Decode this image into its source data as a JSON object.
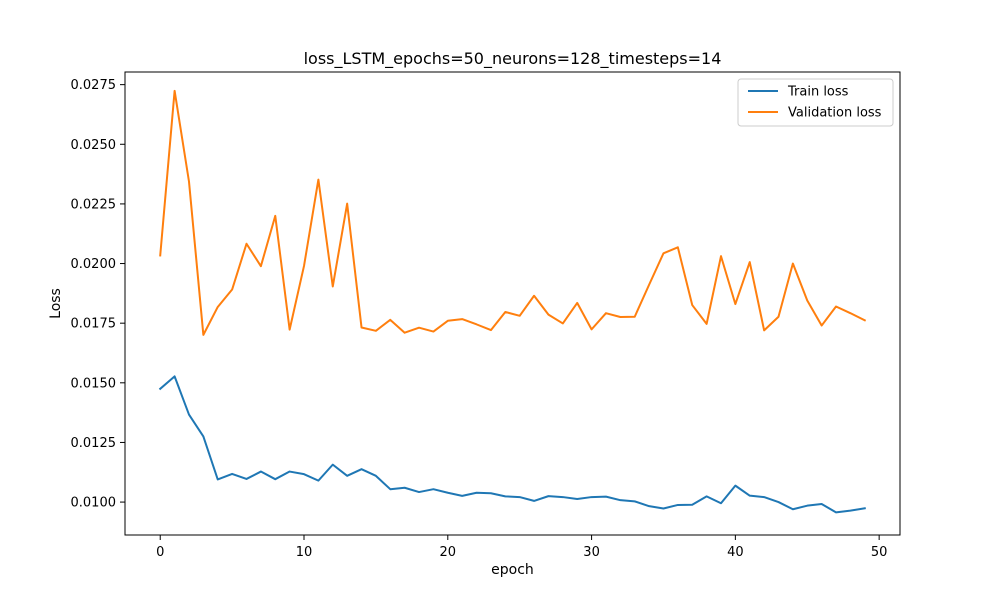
{
  "chart_data": {
    "type": "line",
    "title": "loss_LSTM_epochs=50_neurons=128_timesteps=14",
    "xlabel": "epoch",
    "ylabel": "Loss",
    "xlim": [
      -2.45,
      51.45
    ],
    "ylim": [
      0.00862,
      0.02803
    ],
    "xticks": [
      0,
      10,
      20,
      30,
      40,
      50
    ],
    "xtick_labels": [
      "0",
      "10",
      "20",
      "30",
      "40",
      "50"
    ],
    "yticks": [
      0.01,
      0.0125,
      0.015,
      0.0175,
      0.02,
      0.0225,
      0.025,
      0.0275
    ],
    "ytick_labels": [
      "0.0100",
      "0.0125",
      "0.0150",
      "0.0175",
      "0.0200",
      "0.0225",
      "0.0250",
      "0.0275"
    ],
    "grid": false,
    "legend_position": "top-right",
    "x": [
      0,
      1,
      2,
      3,
      4,
      5,
      6,
      7,
      8,
      9,
      10,
      11,
      12,
      13,
      14,
      15,
      16,
      17,
      18,
      19,
      20,
      21,
      22,
      23,
      24,
      25,
      26,
      27,
      28,
      29,
      30,
      31,
      32,
      33,
      34,
      35,
      36,
      37,
      38,
      39,
      40,
      41,
      42,
      43,
      44,
      45,
      46,
      47,
      48,
      49
    ],
    "series": [
      {
        "name": "Train loss",
        "color": "#1f77b4",
        "values": [
          0.01475,
          0.01527,
          0.01367,
          0.01275,
          0.01095,
          0.01118,
          0.01097,
          0.01128,
          0.01096,
          0.01128,
          0.01117,
          0.0109,
          0.01157,
          0.0111,
          0.01138,
          0.0111,
          0.01054,
          0.0106,
          0.01042,
          0.01054,
          0.01039,
          0.01026,
          0.01039,
          0.01037,
          0.01024,
          0.01021,
          0.01005,
          0.01025,
          0.01021,
          0.01013,
          0.01021,
          0.01023,
          0.01008,
          0.01003,
          0.00983,
          0.00973,
          0.00988,
          0.00989,
          0.01024,
          0.00995,
          0.01069,
          0.01027,
          0.01021,
          0.01,
          0.0097,
          0.00985,
          0.00992,
          0.00957,
          0.00964,
          0.00974
        ]
      },
      {
        "name": "Validation loss",
        "color": "#ff7f0e",
        "values": [
          0.02034,
          0.02724,
          0.02344,
          0.01701,
          0.01818,
          0.01891,
          0.02083,
          0.01989,
          0.022,
          0.01723,
          0.0199,
          0.02352,
          0.01904,
          0.02251,
          0.01732,
          0.01718,
          0.01764,
          0.0171,
          0.01731,
          0.01715,
          0.0176,
          0.01767,
          0.01745,
          0.01721,
          0.01797,
          0.01781,
          0.01865,
          0.01786,
          0.01749,
          0.01835,
          0.01724,
          0.01792,
          0.01776,
          0.01777,
          0.01911,
          0.02043,
          0.02068,
          0.01826,
          0.01747,
          0.02031,
          0.0183,
          0.02006,
          0.0172,
          0.01777,
          0.02,
          0.01845,
          0.0174,
          0.0182,
          0.01792,
          0.01762
        ]
      }
    ]
  }
}
